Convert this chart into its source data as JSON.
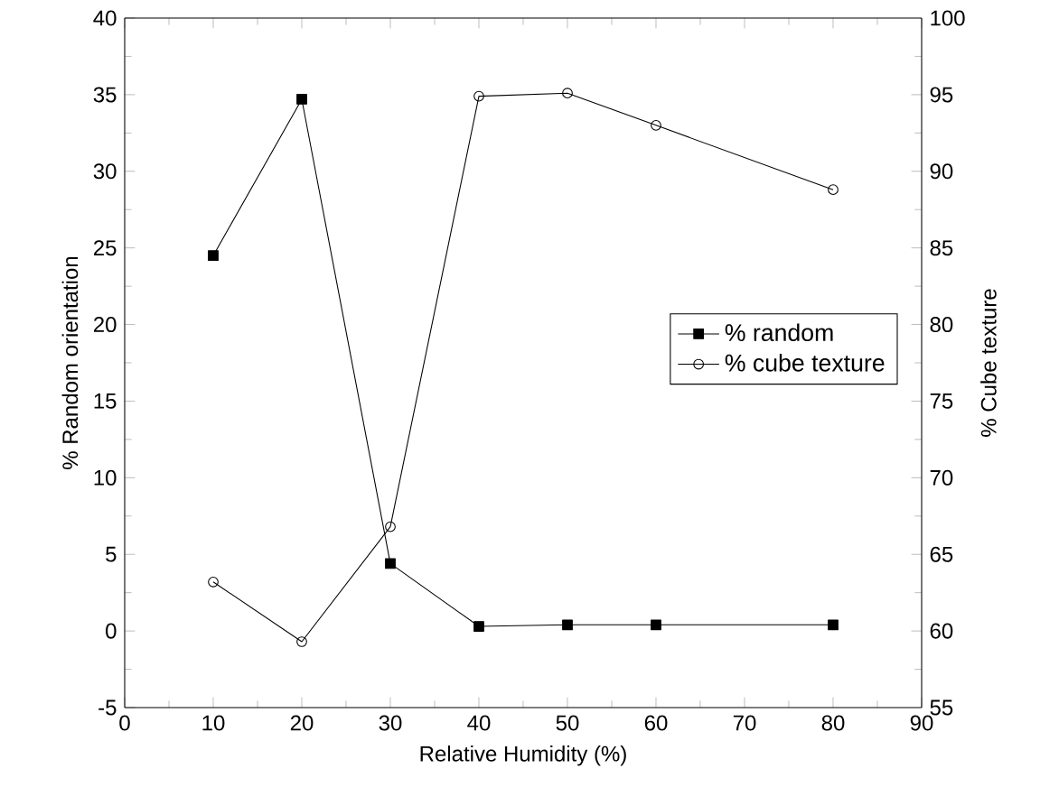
{
  "chart_data": {
    "type": "line",
    "xlabel": "Relative Humidity (%)",
    "ylabel": "% Random orientation",
    "y2label": "% Cube texture",
    "x": [
      10,
      20,
      30,
      40,
      50,
      60,
      80
    ],
    "series": [
      {
        "name": "% random",
        "color": "#000000",
        "marker": "square",
        "values": [
          24.5,
          34.7,
          4.4,
          0.3,
          0.4,
          0.4,
          0.4
        ]
      },
      {
        "name": "% cube texture",
        "color": "#000000",
        "marker": "circle",
        "axis": "y2",
        "values": [
          63.2,
          59.3,
          66.8,
          94.9,
          95.1,
          93.0,
          88.8
        ]
      }
    ],
    "xlim": [
      0,
      90
    ],
    "xticks": [
      0,
      10,
      20,
      30,
      40,
      50,
      60,
      70,
      80,
      90
    ],
    "ylim": [
      -5,
      40
    ],
    "yticks": [
      -5,
      0,
      5,
      10,
      15,
      20,
      25,
      30,
      35,
      40
    ],
    "y2lim": [
      55,
      100
    ],
    "y2ticks": [
      55,
      60,
      65,
      70,
      75,
      80,
      85,
      90,
      95,
      100
    ],
    "legend": "right",
    "grid": false,
    "line_style": "solid"
  }
}
